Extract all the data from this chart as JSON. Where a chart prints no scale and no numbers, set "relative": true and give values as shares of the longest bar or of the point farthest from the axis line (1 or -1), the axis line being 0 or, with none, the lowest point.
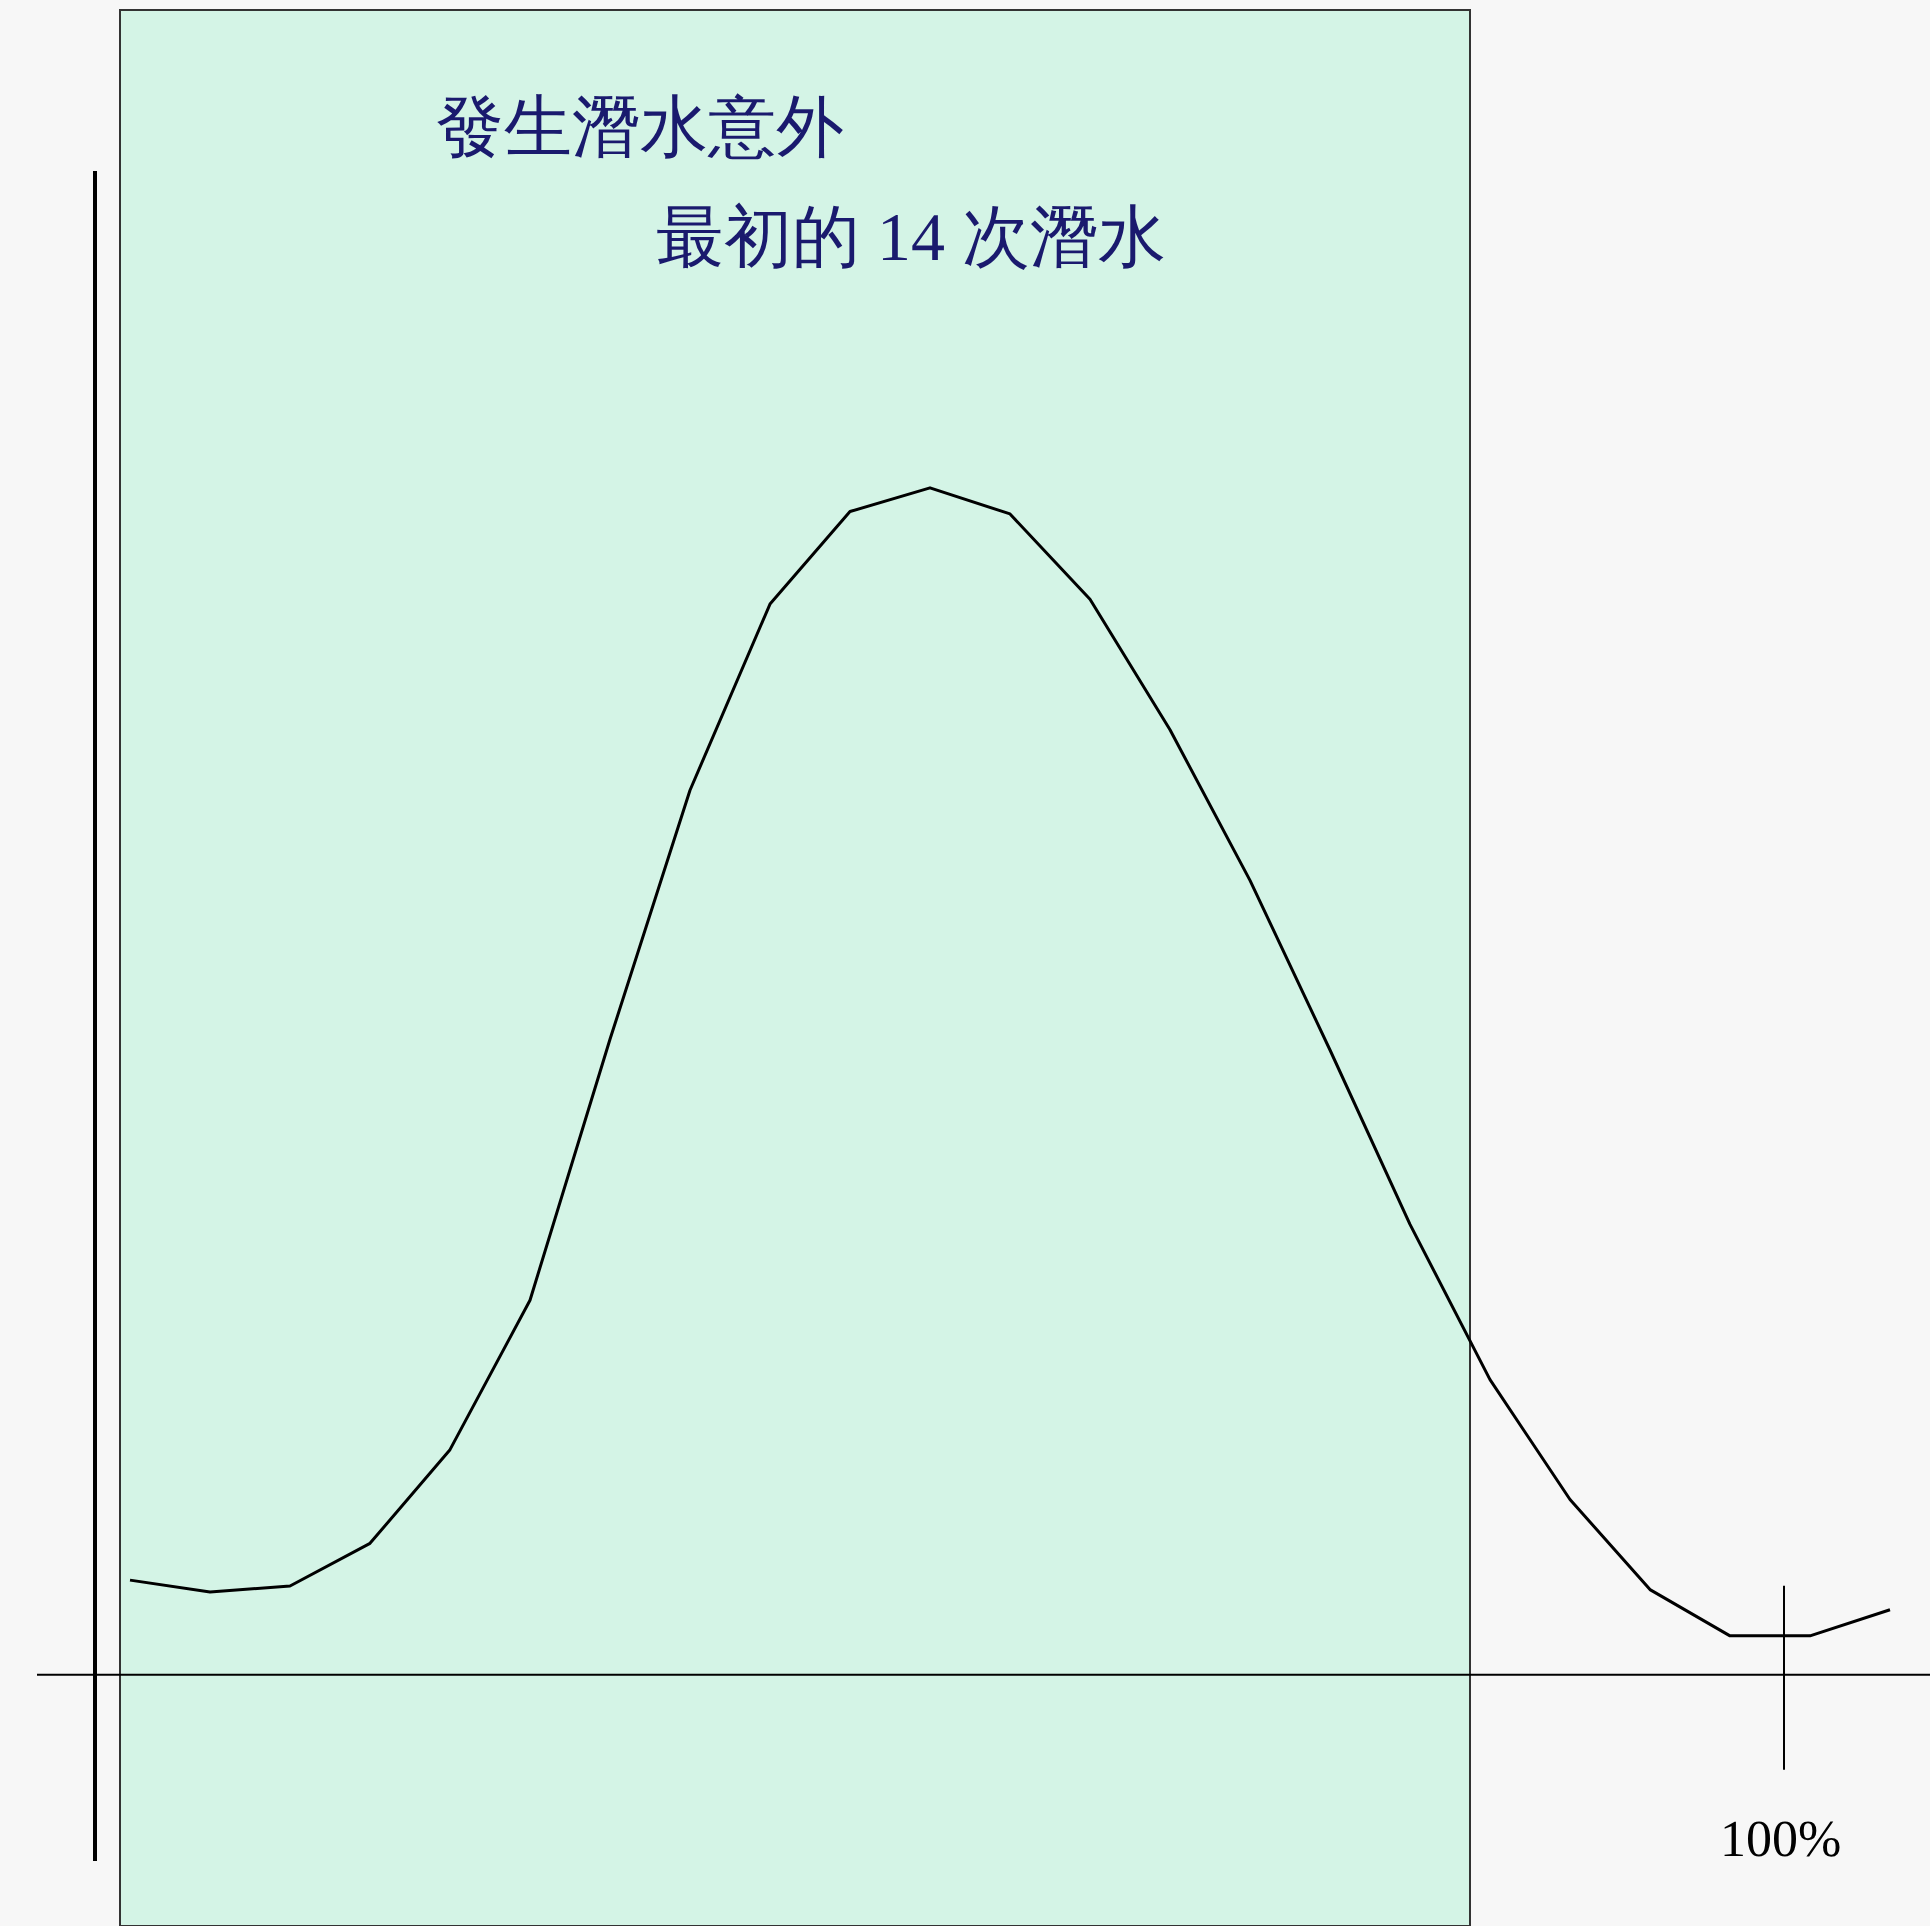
{
  "chart_data": {
    "type": "line",
    "relative": true,
    "annotations": [
      "發生潛水意外",
      "最初的 14 次潛水",
      "100%"
    ],
    "categories": [
      null,
      null,
      null,
      null,
      null,
      null,
      null,
      null,
      null,
      null,
      null,
      null,
      null,
      null,
      null,
      null,
      null,
      null,
      null,
      null,
      null,
      null,
      null
    ],
    "series": [
      {
        "color": "#000000",
        "values": [
          0.079,
          0.069,
          0.074,
          0.11,
          0.189,
          0.315,
          0.535,
          0.745,
          0.902,
          0.98,
          1.0,
          0.978,
          0.906,
          0.796,
          0.669,
          0.526,
          0.379,
          0.248,
          0.147,
          0.071,
          0.032,
          0.032,
          0.054
        ]
      }
    ]
  }
}
